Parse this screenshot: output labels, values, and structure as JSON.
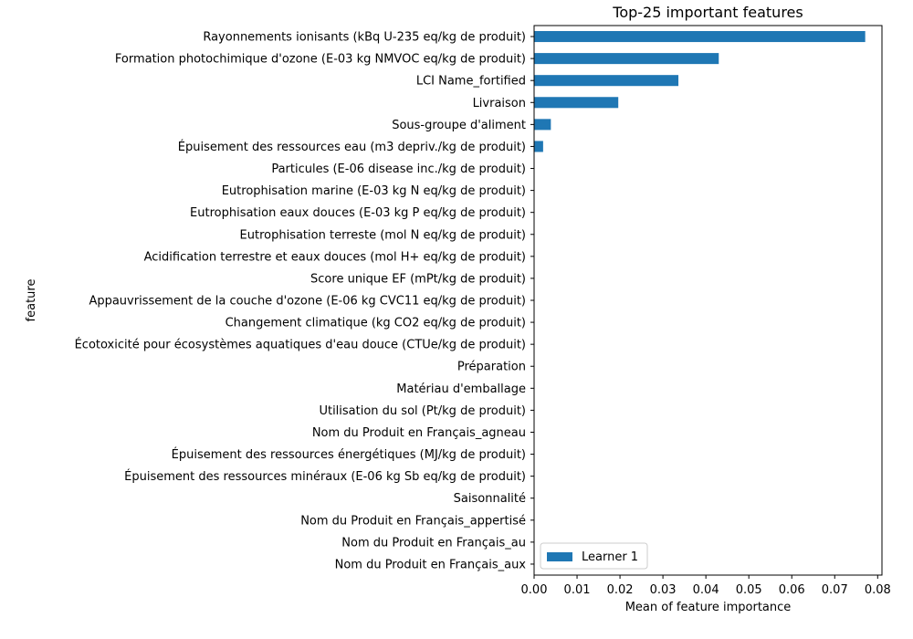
{
  "chart_data": {
    "type": "bar",
    "orientation": "horizontal",
    "title": "Top-25 important features",
    "xlabel": "Mean of feature importance",
    "ylabel": "feature",
    "xlim": [
      0,
      0.081
    ],
    "xticks": [
      "0.00",
      "0.01",
      "0.02",
      "0.03",
      "0.04",
      "0.05",
      "0.06",
      "0.07",
      "0.08"
    ],
    "xtick_values": [
      0,
      0.01,
      0.02,
      0.03,
      0.04,
      0.05,
      0.06,
      0.07,
      0.08
    ],
    "grid": false,
    "legend_position": "lower-left",
    "bar_color": "#1f77b4",
    "categories": [
      "Rayonnements ionisants (kBq U-235 eq/kg de produit)",
      "Formation photochimique d'ozone (E-03 kg NMVOC eq/kg de produit)",
      "LCI Name_fortified",
      "Livraison",
      "Sous-groupe d'aliment",
      "Épuisement des ressources eau (m3 depriv./kg de produit)",
      "Particules (E-06 disease inc./kg de produit)",
      "Eutrophisation marine (E-03 kg N eq/kg de produit)",
      "Eutrophisation eaux douces (E-03 kg P eq/kg de produit)",
      "Eutrophisation terreste (mol N eq/kg de produit)",
      "Acidification terrestre et eaux douces (mol H+ eq/kg de produit)",
      "Score unique EF (mPt/kg de produit)",
      "Appauvrissement de la couche d'ozone (E-06 kg CVC11 eq/kg de produit)",
      "Changement climatique (kg CO2 eq/kg de produit)",
      "Écotoxicité pour écosystèmes aquatiques d'eau douce (CTUe/kg de produit)",
      "Préparation",
      "Matériau d'emballage",
      "Utilisation du sol (Pt/kg de produit)",
      "Nom du Produit en Français_agneau",
      "Épuisement des ressources énergétiques (MJ/kg de produit)",
      "Épuisement des ressources minéraux (E-06 kg Sb eq/kg de produit)",
      "Saisonnalité",
      "Nom du Produit en Français_appertisé",
      "Nom du Produit en Français_au",
      "Nom du Produit en Français_aux"
    ],
    "series": [
      {
        "name": "Learner 1",
        "values": [
          0.0771,
          0.043,
          0.0336,
          0.0196,
          0.0039,
          0.0021,
          0,
          0,
          0,
          0,
          0,
          0,
          0,
          0,
          0,
          0,
          0,
          0,
          0,
          0,
          0,
          0,
          0,
          0,
          0
        ]
      }
    ]
  }
}
